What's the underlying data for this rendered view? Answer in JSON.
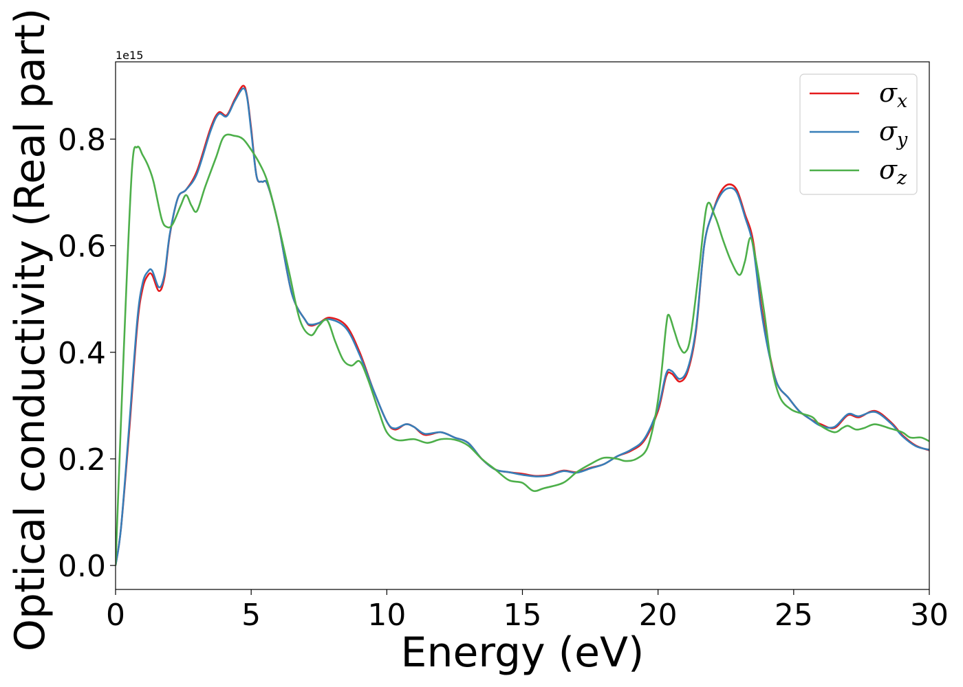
{
  "chart_data": {
    "type": "line",
    "title": "",
    "xlabel": "Energy (eV)",
    "ylabel": "Optical conductivity (Real part)",
    "y_offset_text": "1e15",
    "xlim": [
      0,
      30
    ],
    "ylim": [
      -0.045,
      0.945
    ],
    "x_ticks": [
      "0",
      "5",
      "10",
      "15",
      "20",
      "25",
      "30"
    ],
    "y_ticks": [
      "0.0",
      "0.2",
      "0.4",
      "0.6",
      "0.8"
    ],
    "grid": false,
    "legend_position": "top-right",
    "series": [
      {
        "name": "σ",
        "subscript": "x",
        "color": "#e41a1c",
        "points": [
          [
            0,
            0
          ],
          [
            0.2,
            0.07
          ],
          [
            0.5,
            0.25
          ],
          [
            0.8,
            0.45
          ],
          [
            1.0,
            0.52
          ],
          [
            1.2,
            0.545
          ],
          [
            1.35,
            0.545
          ],
          [
            1.6,
            0.515
          ],
          [
            1.8,
            0.54
          ],
          [
            2.0,
            0.62
          ],
          [
            2.3,
            0.69
          ],
          [
            2.6,
            0.705
          ],
          [
            3.0,
            0.74
          ],
          [
            3.5,
            0.82
          ],
          [
            3.8,
            0.85
          ],
          [
            4.1,
            0.845
          ],
          [
            4.4,
            0.875
          ],
          [
            4.7,
            0.9
          ],
          [
            4.85,
            0.88
          ],
          [
            5.0,
            0.82
          ],
          [
            5.2,
            0.73
          ],
          [
            5.4,
            0.72
          ],
          [
            5.6,
            0.715
          ],
          [
            6.0,
            0.64
          ],
          [
            6.5,
            0.51
          ],
          [
            7.0,
            0.46
          ],
          [
            7.2,
            0.45
          ],
          [
            7.5,
            0.455
          ],
          [
            7.9,
            0.465
          ],
          [
            8.5,
            0.45
          ],
          [
            9.0,
            0.4
          ],
          [
            9.5,
            0.33
          ],
          [
            10.0,
            0.27
          ],
          [
            10.3,
            0.255
          ],
          [
            10.7,
            0.265
          ],
          [
            11.0,
            0.26
          ],
          [
            11.4,
            0.245
          ],
          [
            12.0,
            0.25
          ],
          [
            12.5,
            0.24
          ],
          [
            13.0,
            0.23
          ],
          [
            13.5,
            0.2
          ],
          [
            14.0,
            0.18
          ],
          [
            14.5,
            0.175
          ],
          [
            15.0,
            0.172
          ],
          [
            15.5,
            0.168
          ],
          [
            16.0,
            0.17
          ],
          [
            16.5,
            0.178
          ],
          [
            17.0,
            0.175
          ],
          [
            17.5,
            0.183
          ],
          [
            18.0,
            0.19
          ],
          [
            18.5,
            0.205
          ],
          [
            19.0,
            0.215
          ],
          [
            19.5,
            0.235
          ],
          [
            20.0,
            0.29
          ],
          [
            20.3,
            0.355
          ],
          [
            20.5,
            0.36
          ],
          [
            20.8,
            0.345
          ],
          [
            21.1,
            0.365
          ],
          [
            21.4,
            0.44
          ],
          [
            21.7,
            0.6
          ],
          [
            22.0,
            0.66
          ],
          [
            22.3,
            0.7
          ],
          [
            22.6,
            0.715
          ],
          [
            22.9,
            0.705
          ],
          [
            23.2,
            0.66
          ],
          [
            23.5,
            0.61
          ],
          [
            23.8,
            0.49
          ],
          [
            24.1,
            0.4
          ],
          [
            24.4,
            0.34
          ],
          [
            24.8,
            0.315
          ],
          [
            25.2,
            0.29
          ],
          [
            25.6,
            0.275
          ],
          [
            26.0,
            0.265
          ],
          [
            26.5,
            0.258
          ],
          [
            27.0,
            0.282
          ],
          [
            27.4,
            0.278
          ],
          [
            28.0,
            0.29
          ],
          [
            28.6,
            0.268
          ],
          [
            29.0,
            0.245
          ],
          [
            29.5,
            0.225
          ],
          [
            30.0,
            0.216
          ]
        ]
      },
      {
        "name": "σ",
        "subscript": "y",
        "color": "#377eb8",
        "points": [
          [
            0,
            0
          ],
          [
            0.2,
            0.07
          ],
          [
            0.5,
            0.26
          ],
          [
            0.8,
            0.46
          ],
          [
            1.0,
            0.53
          ],
          [
            1.2,
            0.552
          ],
          [
            1.35,
            0.553
          ],
          [
            1.6,
            0.522
          ],
          [
            1.8,
            0.545
          ],
          [
            2.0,
            0.622
          ],
          [
            2.3,
            0.69
          ],
          [
            2.6,
            0.705
          ],
          [
            3.0,
            0.735
          ],
          [
            3.5,
            0.815
          ],
          [
            3.8,
            0.847
          ],
          [
            4.1,
            0.843
          ],
          [
            4.4,
            0.872
          ],
          [
            4.7,
            0.895
          ],
          [
            4.85,
            0.878
          ],
          [
            5.0,
            0.815
          ],
          [
            5.2,
            0.73
          ],
          [
            5.4,
            0.72
          ],
          [
            5.6,
            0.715
          ],
          [
            6.0,
            0.64
          ],
          [
            6.5,
            0.51
          ],
          [
            7.0,
            0.46
          ],
          [
            7.2,
            0.452
          ],
          [
            7.5,
            0.455
          ],
          [
            7.9,
            0.462
          ],
          [
            8.5,
            0.445
          ],
          [
            9.0,
            0.395
          ],
          [
            9.5,
            0.33
          ],
          [
            10.0,
            0.27
          ],
          [
            10.3,
            0.257
          ],
          [
            10.7,
            0.265
          ],
          [
            11.0,
            0.26
          ],
          [
            11.4,
            0.247
          ],
          [
            12.0,
            0.25
          ],
          [
            12.5,
            0.24
          ],
          [
            13.0,
            0.23
          ],
          [
            13.5,
            0.2
          ],
          [
            14.0,
            0.18
          ],
          [
            14.5,
            0.175
          ],
          [
            15.0,
            0.17
          ],
          [
            15.5,
            0.167
          ],
          [
            16.0,
            0.169
          ],
          [
            16.5,
            0.177
          ],
          [
            17.0,
            0.174
          ],
          [
            17.5,
            0.182
          ],
          [
            18.0,
            0.19
          ],
          [
            18.5,
            0.205
          ],
          [
            19.0,
            0.217
          ],
          [
            19.5,
            0.238
          ],
          [
            20.0,
            0.295
          ],
          [
            20.3,
            0.36
          ],
          [
            20.5,
            0.365
          ],
          [
            20.8,
            0.35
          ],
          [
            21.1,
            0.37
          ],
          [
            21.4,
            0.445
          ],
          [
            21.7,
            0.6
          ],
          [
            22.0,
            0.66
          ],
          [
            22.3,
            0.695
          ],
          [
            22.6,
            0.708
          ],
          [
            22.9,
            0.7
          ],
          [
            23.2,
            0.655
          ],
          [
            23.5,
            0.6
          ],
          [
            23.8,
            0.48
          ],
          [
            24.1,
            0.395
          ],
          [
            24.4,
            0.34
          ],
          [
            24.8,
            0.315
          ],
          [
            25.2,
            0.29
          ],
          [
            25.6,
            0.275
          ],
          [
            26.0,
            0.262
          ],
          [
            26.5,
            0.26
          ],
          [
            27.0,
            0.284
          ],
          [
            27.4,
            0.28
          ],
          [
            28.0,
            0.288
          ],
          [
            28.6,
            0.266
          ],
          [
            29.0,
            0.243
          ],
          [
            29.5,
            0.224
          ],
          [
            30.0,
            0.217
          ]
        ]
      },
      {
        "name": "σ",
        "subscript": "z",
        "color": "#4daf4a",
        "points": [
          [
            0,
            0
          ],
          [
            0.3,
            0.4
          ],
          [
            0.6,
            0.74
          ],
          [
            0.8,
            0.785
          ],
          [
            1.0,
            0.77
          ],
          [
            1.2,
            0.75
          ],
          [
            1.4,
            0.72
          ],
          [
            1.7,
            0.65
          ],
          [
            1.9,
            0.635
          ],
          [
            2.1,
            0.64
          ],
          [
            2.4,
            0.675
          ],
          [
            2.6,
            0.695
          ],
          [
            2.8,
            0.675
          ],
          [
            3.0,
            0.665
          ],
          [
            3.3,
            0.71
          ],
          [
            3.7,
            0.765
          ],
          [
            4.0,
            0.805
          ],
          [
            4.4,
            0.806
          ],
          [
            4.7,
            0.8
          ],
          [
            5.0,
            0.78
          ],
          [
            5.3,
            0.755
          ],
          [
            5.6,
            0.72
          ],
          [
            6.0,
            0.64
          ],
          [
            6.4,
            0.55
          ],
          [
            6.8,
            0.46
          ],
          [
            7.2,
            0.432
          ],
          [
            7.5,
            0.45
          ],
          [
            7.8,
            0.46
          ],
          [
            8.1,
            0.42
          ],
          [
            8.4,
            0.385
          ],
          [
            8.7,
            0.375
          ],
          [
            9.0,
            0.383
          ],
          [
            9.3,
            0.35
          ],
          [
            9.7,
            0.29
          ],
          [
            10.0,
            0.25
          ],
          [
            10.4,
            0.235
          ],
          [
            11.0,
            0.237
          ],
          [
            11.5,
            0.23
          ],
          [
            12.0,
            0.237
          ],
          [
            12.5,
            0.236
          ],
          [
            13.0,
            0.225
          ],
          [
            13.5,
            0.2
          ],
          [
            14.0,
            0.18
          ],
          [
            14.5,
            0.16
          ],
          [
            15.0,
            0.155
          ],
          [
            15.4,
            0.14
          ],
          [
            15.8,
            0.145
          ],
          [
            16.5,
            0.155
          ],
          [
            17.0,
            0.175
          ],
          [
            17.5,
            0.19
          ],
          [
            18.0,
            0.202
          ],
          [
            18.5,
            0.2
          ],
          [
            18.8,
            0.196
          ],
          [
            19.2,
            0.2
          ],
          [
            19.6,
            0.22
          ],
          [
            19.9,
            0.28
          ],
          [
            20.1,
            0.35
          ],
          [
            20.3,
            0.45
          ],
          [
            20.4,
            0.47
          ],
          [
            20.6,
            0.44
          ],
          [
            20.8,
            0.41
          ],
          [
            21.0,
            0.4
          ],
          [
            21.2,
            0.43
          ],
          [
            21.5,
            0.55
          ],
          [
            21.8,
            0.675
          ],
          [
            22.1,
            0.655
          ],
          [
            22.4,
            0.61
          ],
          [
            22.7,
            0.57
          ],
          [
            23.0,
            0.545
          ],
          [
            23.2,
            0.57
          ],
          [
            23.4,
            0.615
          ],
          [
            23.6,
            0.575
          ],
          [
            23.9,
            0.48
          ],
          [
            24.2,
            0.37
          ],
          [
            24.5,
            0.315
          ],
          [
            24.9,
            0.293
          ],
          [
            25.3,
            0.285
          ],
          [
            25.7,
            0.278
          ],
          [
            26.0,
            0.262
          ],
          [
            26.5,
            0.25
          ],
          [
            26.8,
            0.258
          ],
          [
            27.0,
            0.262
          ],
          [
            27.3,
            0.255
          ],
          [
            27.6,
            0.258
          ],
          [
            28.0,
            0.265
          ],
          [
            28.5,
            0.258
          ],
          [
            29.0,
            0.25
          ],
          [
            29.3,
            0.24
          ],
          [
            29.7,
            0.24
          ],
          [
            30.0,
            0.233
          ]
        ]
      }
    ]
  }
}
